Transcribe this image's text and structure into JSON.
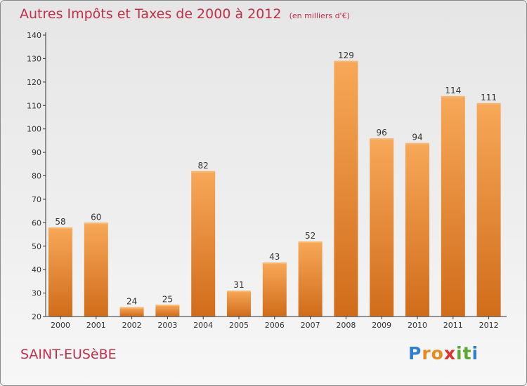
{
  "title": "Autres Impôts et Taxes de 2000 à 2012",
  "title_unit": "(en milliers d'€)",
  "city": "SAINT-EUSèBE",
  "logo": {
    "letters": [
      "P",
      "r",
      "o",
      "x",
      "i",
      "t",
      "i"
    ],
    "colors": [
      "#2e7fd0",
      "#e98a1c",
      "#e98a1c",
      "#e0302f",
      "#58a832",
      "#58a832",
      "#2e7fd0"
    ]
  },
  "colors": {
    "title": "#c0304a",
    "bar_light": "#f7a858",
    "bar_dark": "#d06c1a",
    "axis": "#333333"
  },
  "chart_data": {
    "type": "bar",
    "categories": [
      "2000",
      "2001",
      "2002",
      "2003",
      "2004",
      "2005",
      "2006",
      "2007",
      "2008",
      "2009",
      "2010",
      "2011",
      "2012"
    ],
    "values": [
      58,
      60,
      24,
      25,
      82,
      31,
      43,
      52,
      129,
      96,
      94,
      114,
      111
    ],
    "value_labels": [
      "58",
      "60",
      "24",
      "25",
      "82",
      "31",
      "43",
      "52",
      "129",
      "96",
      "94",
      "114",
      "111"
    ],
    "yticks": [
      "20",
      "30",
      "40",
      "50",
      "60",
      "70",
      "80",
      "90",
      "100",
      "110",
      "120",
      "130",
      "140"
    ],
    "ylim": [
      20,
      140
    ],
    "grid": false,
    "legend": "none"
  }
}
